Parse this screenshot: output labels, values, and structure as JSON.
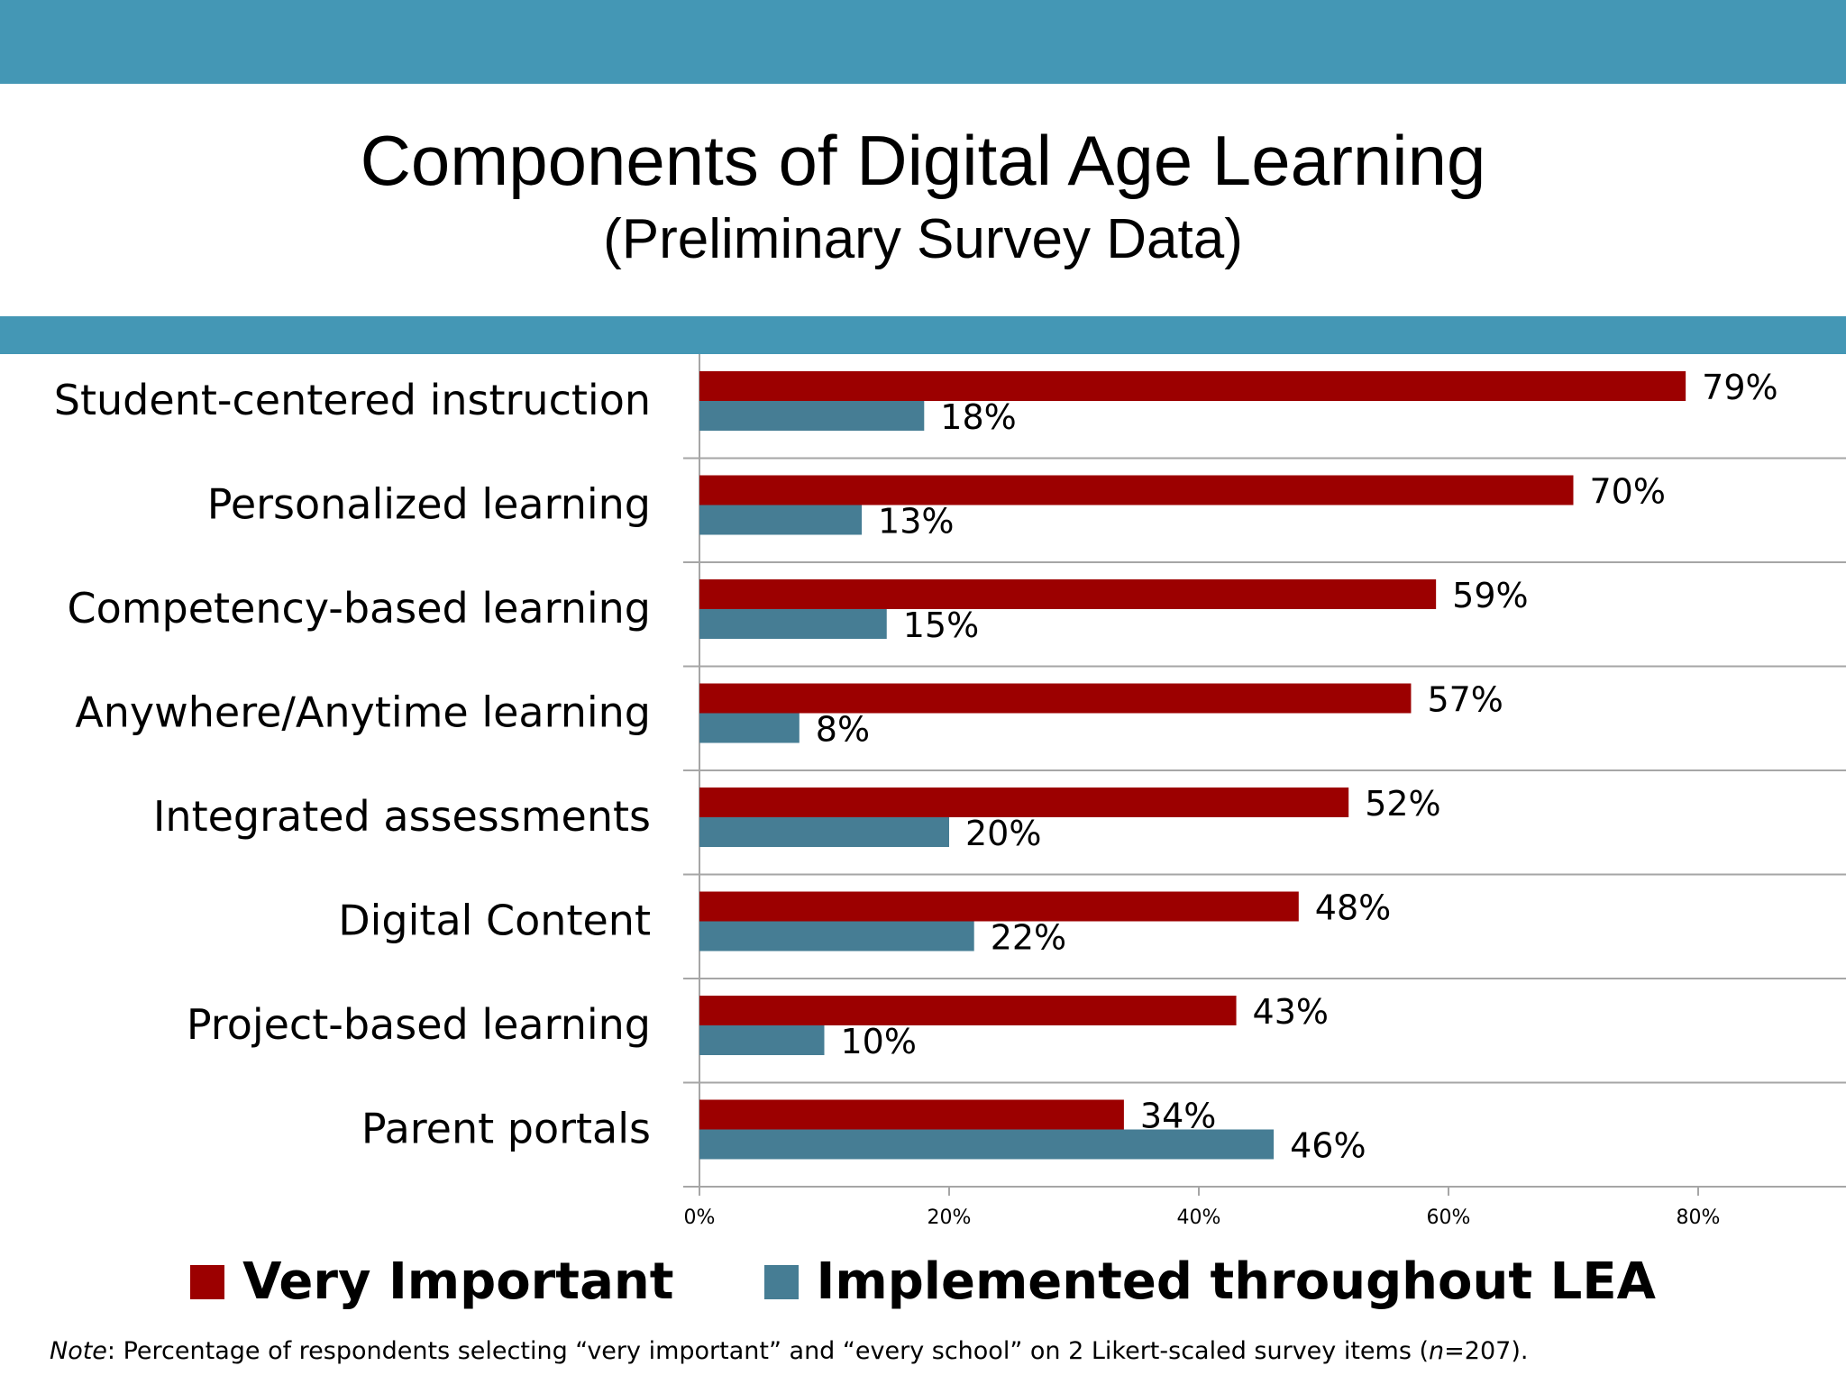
{
  "header": {
    "title": "Components of Digital Age Learning",
    "subtitle": "(Preliminary Survey Data)"
  },
  "colors": {
    "band": "#4497b5",
    "very_important": "#9c0000",
    "implemented": "#467d94"
  },
  "chart_data": {
    "type": "bar",
    "orientation": "horizontal",
    "categories": [
      "Student-centered instruction",
      "Personalized learning",
      "Competency-based learning",
      "Anywhere/Anytime learning",
      "Integrated assessments",
      "Digital Content",
      "Project-based learning",
      "Parent portals"
    ],
    "series": [
      {
        "name": "Very Important",
        "color": "#9c0000",
        "values": [
          79,
          70,
          59,
          57,
          52,
          48,
          43,
          34
        ]
      },
      {
        "name": "Implemented throughout LEA",
        "color": "#467d94",
        "values": [
          18,
          13,
          15,
          8,
          20,
          22,
          10,
          46
        ]
      }
    ],
    "value_labels": [
      [
        "79%",
        "70%",
        "59%",
        "57%",
        "52%",
        "48%",
        "43%",
        "34%"
      ],
      [
        "18%",
        "13%",
        "15%",
        "8%",
        "20%",
        "22%",
        "10%",
        "46%"
      ]
    ],
    "xlim": [
      0,
      90
    ],
    "xticks": [
      0,
      20,
      40,
      60,
      80
    ],
    "xtick_labels": [
      "0%",
      "20%",
      "40%",
      "60%",
      "80%"
    ],
    "grid": true,
    "legend_position": "bottom"
  },
  "legend": {
    "very_important": "Very Important",
    "implemented": "Implemented throughout LEA"
  },
  "note": {
    "prefix": "Note",
    "text_a": ": Percentage of respondents selecting “very important” and “every school” on 2 Likert-scaled survey items (",
    "n_symbol": "n",
    "text_b": "=207)."
  }
}
